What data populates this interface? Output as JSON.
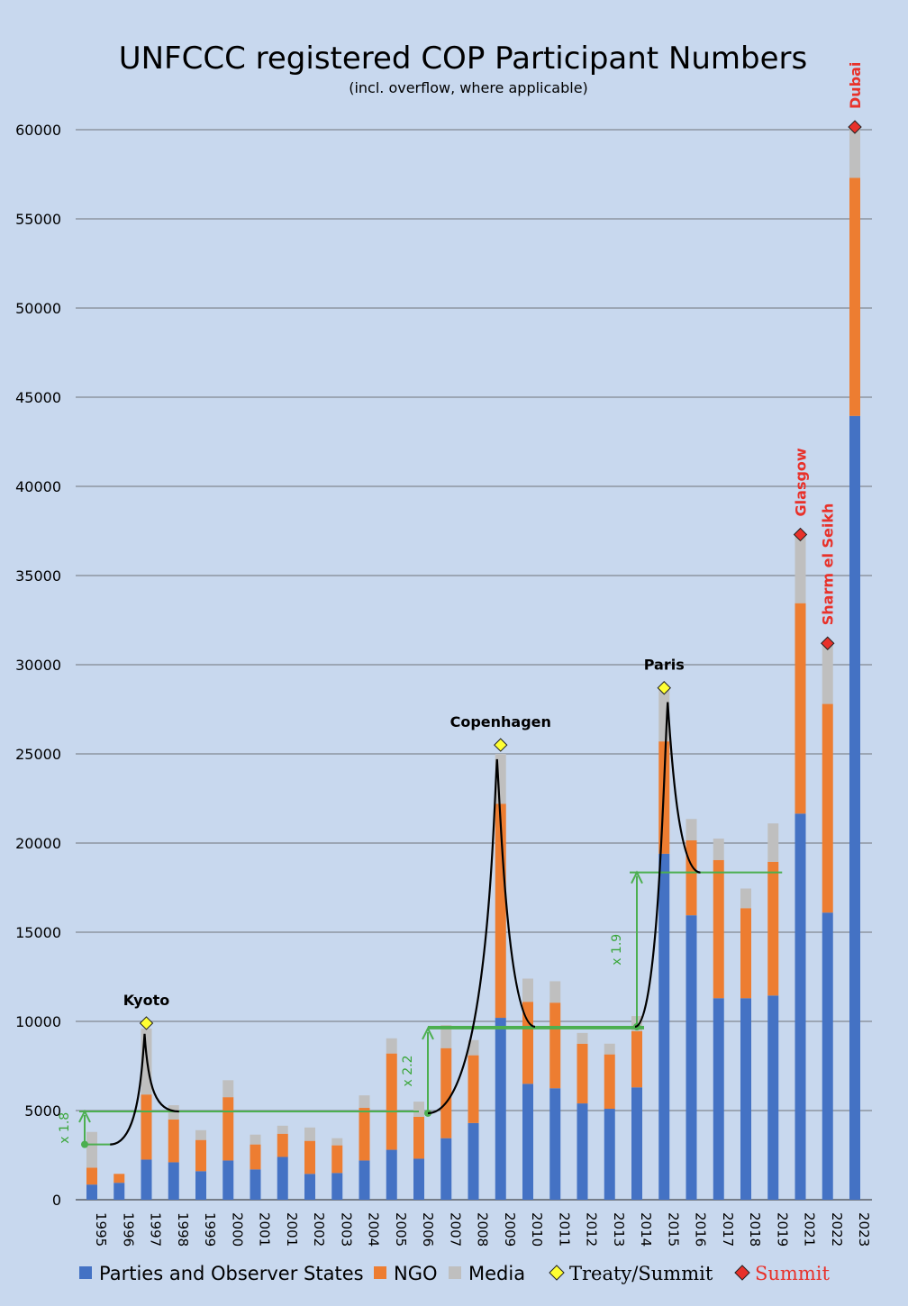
{
  "chart_data": {
    "type": "bar",
    "stacked": true,
    "title": "UNFCCC registered COP Participant Numbers",
    "subtitle": "(incl. overflow, where applicable)",
    "xlabel": "",
    "ylabel": "",
    "ylim": [
      0,
      60000
    ],
    "yticks": [
      "0",
      "5000",
      "10000",
      "15000",
      "20000",
      "25000",
      "30000",
      "35000",
      "40000",
      "45000",
      "50000",
      "55000",
      "60000"
    ],
    "grid": true,
    "legend_position": "bottom",
    "categories": [
      "1995",
      "1996",
      "1997",
      "1998",
      "1999",
      "2000",
      "2001",
      "2001",
      "2002",
      "2003",
      "2004",
      "2005",
      "2006",
      "2007",
      "2008",
      "2009",
      "2010",
      "2011",
      "2012",
      "2013",
      "2014",
      "2015",
      "2016",
      "2017",
      "2018",
      "2019",
      "2021",
      "2022",
      "2023"
    ],
    "series": [
      {
        "name": "Parties and Observer States",
        "color": "#4472c4",
        "values": [
          850,
          950,
          2250,
          2100,
          1600,
          2200,
          1700,
          2400,
          1450,
          1500,
          2200,
          2800,
          2300,
          3450,
          4300,
          10200,
          6500,
          6250,
          5400,
          5100,
          6300,
          19400,
          15950,
          11300,
          11300,
          11450,
          21650,
          16100,
          43950
        ]
      },
      {
        "name": "NGO",
        "color": "#ed7d31",
        "values": [
          950,
          500,
          3650,
          2400,
          1750,
          3550,
          1400,
          1300,
          1850,
          1550,
          2950,
          5400,
          2350,
          5050,
          3800,
          12000,
          4600,
          4800,
          3350,
          3050,
          3150,
          6300,
          4200,
          7750,
          5050,
          7500,
          11800,
          11700,
          13350
        ]
      },
      {
        "name": "Media",
        "color": "#bfbfbf",
        "values": [
          2000,
          0,
          3700,
          800,
          550,
          950,
          550,
          450,
          750,
          400,
          700,
          850,
          850,
          1300,
          850,
          2800,
          1300,
          1200,
          600,
          600,
          850,
          2900,
          1200,
          1200,
          1100,
          2150,
          3850,
          3300,
          2900
        ]
      }
    ],
    "treaty_summits": [
      {
        "label": "Kyoto",
        "year": "1997",
        "value": 9900
      },
      {
        "label": "Copenhagen",
        "year": "2009",
        "value": 25500
      },
      {
        "label": "Paris",
        "year": "2015",
        "value": 28700
      }
    ],
    "summits": [
      {
        "label": "Glasgow",
        "year": "2021",
        "value": 37300
      },
      {
        "label": "Sharm el Seikh",
        "year": "2022",
        "value": 31200
      },
      {
        "label": "Dubai",
        "year": "2023",
        "value": 60150
      }
    ],
    "growth_annotations": [
      {
        "label": "x 1.8",
        "from": 3100,
        "to": 4950
      },
      {
        "label": "x 2.2",
        "from": 4850,
        "to": 9600
      },
      {
        "label": "x 1.9",
        "from": 9700,
        "to": 18350
      }
    ],
    "legend": [
      {
        "label": "Parties and Observer States",
        "marker": "square",
        "color": "#4472c4"
      },
      {
        "label": "NGO",
        "marker": "square",
        "color": "#ed7d31"
      },
      {
        "label": "Media",
        "marker": "square",
        "color": "#bfbfbf"
      },
      {
        "label": "Treaty/Summit",
        "marker": "diamond",
        "color": "#ffff33"
      },
      {
        "label": "Summit",
        "marker": "diamond",
        "color": "#e8312a"
      }
    ]
  }
}
